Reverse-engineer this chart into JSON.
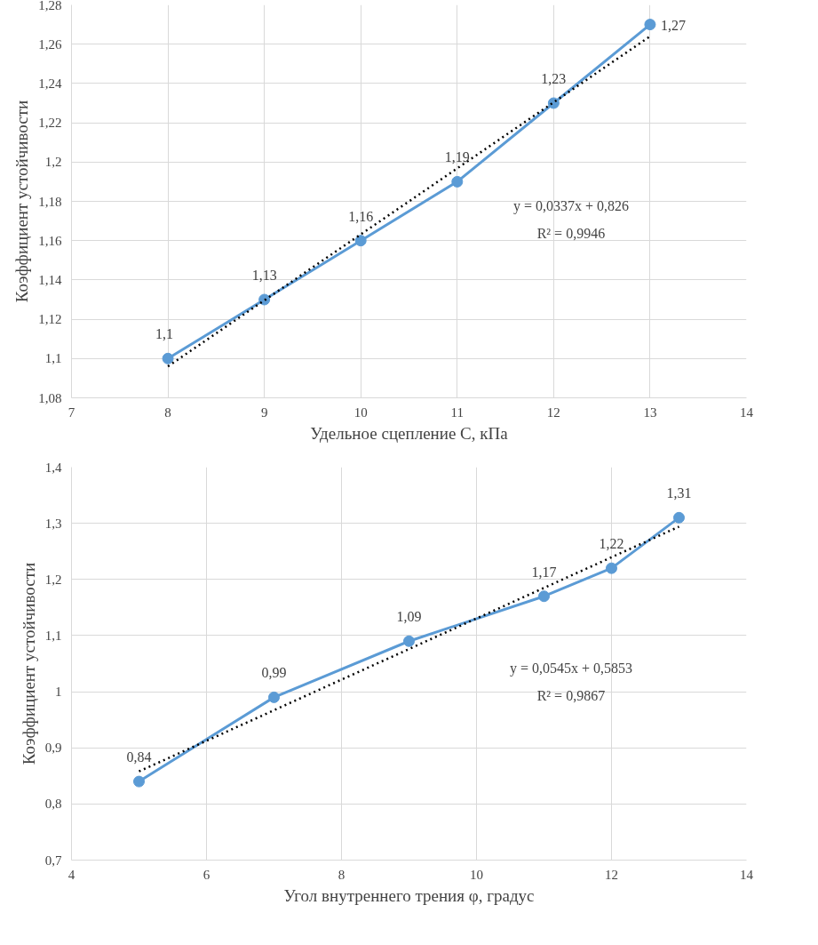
{
  "chart_data": [
    {
      "type": "line",
      "xlabel": "Удельное сцепление С, кПа",
      "ylabel": "Коэффициент устойчивости",
      "grid": true,
      "xlim": [
        7,
        14
      ],
      "xticks": [
        7,
        8,
        9,
        10,
        11,
        12,
        13,
        14
      ],
      "ylim": [
        1.08,
        1.28
      ],
      "yticks": [
        {
          "value": 1.08,
          "label": "1,08"
        },
        {
          "value": 1.1,
          "label": "1,1"
        },
        {
          "value": 1.12,
          "label": "1,12"
        },
        {
          "value": 1.14,
          "label": "1,14"
        },
        {
          "value": 1.16,
          "label": "1,16"
        },
        {
          "value": 1.18,
          "label": "1,18"
        },
        {
          "value": 1.2,
          "label": "1,2"
        },
        {
          "value": 1.22,
          "label": "1,22"
        },
        {
          "value": 1.24,
          "label": "1,24"
        },
        {
          "value": 1.26,
          "label": "1,26"
        },
        {
          "value": 1.28,
          "label": "1,28"
        }
      ],
      "series": [
        {
          "color": "#5b9bd5",
          "marker": "circle",
          "line_style": "solid",
          "x": [
            8,
            9,
            10,
            11,
            12,
            13
          ],
          "values": [
            1.1,
            1.13,
            1.16,
            1.19,
            1.23,
            1.27
          ],
          "value_labels": [
            "1,1",
            "1,13",
            "1,16",
            "1,19",
            "1,23",
            "1,27"
          ]
        },
        {
          "color": "#000000",
          "marker": "none",
          "line_style": "dotted",
          "x": [
            8,
            13
          ],
          "values": [
            1.096,
            1.264
          ]
        }
      ],
      "annotations": [
        "y = 0,0337x + 0,826",
        "R² = 0,9946"
      ]
    },
    {
      "type": "line",
      "xlabel": "Угол внутреннего трения φ, градус",
      "ylabel": "Коэффициент устойчивости",
      "grid": true,
      "xlim": [
        4,
        14
      ],
      "xticks": [
        4,
        6,
        8,
        10,
        12,
        14
      ],
      "ylim": [
        0.7,
        1.4
      ],
      "yticks": [
        {
          "value": 0.7,
          "label": "0,7"
        },
        {
          "value": 0.8,
          "label": "0,8"
        },
        {
          "value": 0.9,
          "label": "0,9"
        },
        1,
        {
          "value": 1.1,
          "label": "1,1"
        },
        {
          "value": 1.2,
          "label": "1,2"
        },
        {
          "value": 1.3,
          "label": "1,3"
        },
        {
          "value": 1.4,
          "label": "1,4"
        }
      ],
      "series": [
        {
          "color": "#5b9bd5",
          "marker": "circle",
          "line_style": "solid",
          "x": [
            5,
            7,
            9,
            11,
            12,
            13
          ],
          "values": [
            0.84,
            0.99,
            1.09,
            1.17,
            1.22,
            1.31
          ],
          "value_labels": [
            "0,84",
            "0,99",
            "1,09",
            "1,17",
            "1,22",
            "1,31"
          ]
        },
        {
          "color": "#000000",
          "marker": "none",
          "line_style": "dotted",
          "x": [
            5,
            13
          ],
          "values": [
            0.858,
            1.294
          ]
        }
      ],
      "annotations": [
        "y = 0,0545x + 0,5853",
        "R² = 0,9867"
      ]
    }
  ]
}
